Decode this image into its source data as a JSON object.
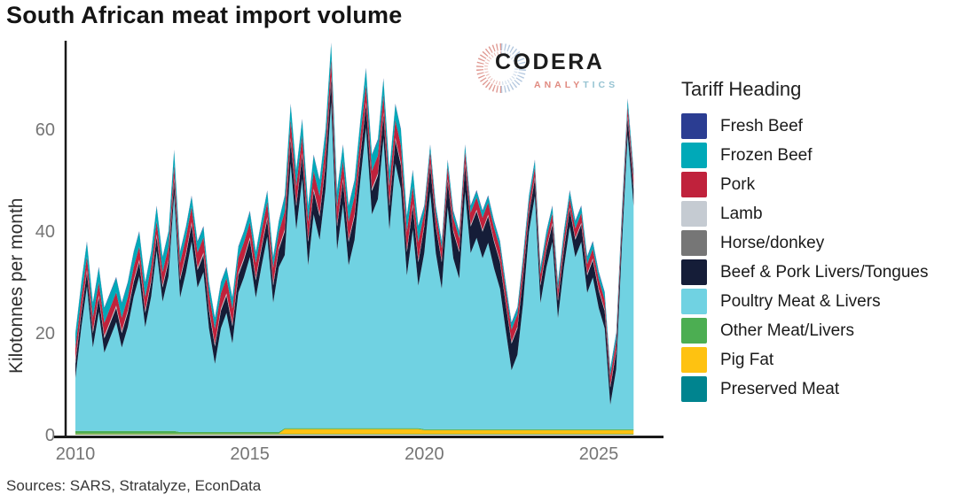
{
  "title": "South African meat import volume",
  "sources": "Sources: SARS, Stratalyze, EconData",
  "logo": {
    "name": "CODERA",
    "subtitle_left": "ANALY",
    "subtitle_right": "TICS"
  },
  "legend": {
    "title": "Tariff Heading",
    "position": "right"
  },
  "chart_data": {
    "type": "area",
    "stacked": true,
    "title": "South African meat import volume",
    "xlabel": "",
    "ylabel": "Kilotonnes per month",
    "grid": false,
    "legend_title": "Tariff Heading",
    "legend_position": "right",
    "xlim": [
      2010,
      2026.2
    ],
    "ylim": [
      0,
      77
    ],
    "x_ticks": [
      2010,
      2015,
      2020,
      2025
    ],
    "y_ticks": [
      0,
      20,
      40,
      60
    ],
    "x_unit": "decimal year, monthly data sampled bimonthly",
    "y_unit": "kilotonnes per month",
    "stack_note": "series listed top-of-stack first (legend order); stacking bottom-to-top is the reverse order",
    "x": [
      2010,
      2010.17,
      2010.33,
      2010.5,
      2010.67,
      2010.83,
      2011,
      2011.17,
      2011.33,
      2011.5,
      2011.67,
      2011.83,
      2012,
      2012.17,
      2012.33,
      2012.5,
      2012.67,
      2012.83,
      2013,
      2013.17,
      2013.33,
      2013.5,
      2013.67,
      2013.83,
      2014,
      2014.17,
      2014.33,
      2014.5,
      2014.67,
      2014.83,
      2015,
      2015.17,
      2015.33,
      2015.5,
      2015.67,
      2015.83,
      2016,
      2016.17,
      2016.33,
      2016.5,
      2016.67,
      2016.83,
      2017,
      2017.17,
      2017.33,
      2017.5,
      2017.67,
      2017.83,
      2018,
      2018.17,
      2018.33,
      2018.5,
      2018.67,
      2018.83,
      2019,
      2019.17,
      2019.33,
      2019.5,
      2019.67,
      2019.83,
      2020,
      2020.17,
      2020.33,
      2020.5,
      2020.67,
      2020.83,
      2021,
      2021.17,
      2021.33,
      2021.5,
      2021.67,
      2021.83,
      2022,
      2022.17,
      2022.33,
      2022.5,
      2022.67,
      2022.83,
      2023,
      2023.17,
      2023.33,
      2023.5,
      2023.67,
      2023.83,
      2024,
      2024.17,
      2024.33,
      2024.5,
      2024.67,
      2024.83,
      2025,
      2025.17,
      2025.33,
      2025.5,
      2025.67,
      2025.83,
      2026
    ],
    "series": [
      {
        "name": "Fresh Beef",
        "color": "#2b3d92",
        "values": [
          0.2,
          0.2,
          0.2,
          0.2,
          0.2,
          0.2,
          0.2,
          0.2,
          0.2,
          0.2,
          0.2,
          0.2,
          0.2,
          0.2,
          0.2,
          0.2,
          0.2,
          0.2,
          0.2,
          0.2,
          0.2,
          0.2,
          0.2,
          0.2,
          0.2,
          0.2,
          0.2,
          0.2,
          0.2,
          0.2,
          0.2,
          0.2,
          0.2,
          0.2,
          0.2,
          0.2,
          0.2,
          0.2,
          0.2,
          0.2,
          0.2,
          0.2,
          0.2,
          0.2,
          0.2,
          0.2,
          0.2,
          0.2,
          0.2,
          0.2,
          0.2,
          0.2,
          0.2,
          0.2,
          0.2,
          0.2,
          0.2,
          0.2,
          0.2,
          0.2,
          0.2,
          0.2,
          0.2,
          0.2,
          0.2,
          0.2,
          0.2,
          0.2,
          0.2,
          0.2,
          0.2,
          0.2,
          0.2,
          0.2,
          0.2,
          0.2,
          0.2,
          0.2,
          0.2,
          0.2,
          0.2,
          0.2,
          0.2,
          0.2,
          0.2,
          0.2,
          0.2,
          0.2,
          0.2,
          0.2,
          0.2,
          0.2,
          0.2,
          0.2,
          0.2,
          0.2,
          0.2
        ]
      },
      {
        "name": "Frozen Beef",
        "color": "#00a9b8",
        "values": [
          2.8,
          2.8,
          2.8,
          2.8,
          2.8,
          2.8,
          2.8,
          2.8,
          2.8,
          2.8,
          2.8,
          2.8,
          2.8,
          2.8,
          2.8,
          2.8,
          2.8,
          2.8,
          2,
          2,
          2,
          2,
          2,
          2,
          2,
          2,
          2,
          2,
          2,
          2,
          2,
          2,
          2,
          2,
          2,
          2,
          3,
          3,
          3,
          3,
          3,
          3,
          3,
          3,
          3,
          3,
          3,
          3,
          3,
          3,
          3,
          3,
          3,
          3,
          3,
          3,
          3,
          3,
          3,
          3,
          1.2,
          1.2,
          1.2,
          1.2,
          1.2,
          1.2,
          1.2,
          1.2,
          1.2,
          1.2,
          1.2,
          1.2,
          1.2,
          1.2,
          1.2,
          1.2,
          1.2,
          1.2,
          1.3,
          1.3,
          1.3,
          1.3,
          1.3,
          1.3,
          1.3,
          1.3,
          1.3,
          1.3,
          1.3,
          1.3,
          1.3,
          1.3,
          1.3,
          1.3,
          1.3,
          1.3,
          1.3
        ]
      },
      {
        "name": "Pork",
        "color": "#c0223c",
        "values": [
          2.6,
          2.6,
          2.6,
          2.6,
          2.6,
          2.6,
          2.6,
          2.6,
          2.6,
          2.6,
          2.6,
          2.6,
          2.6,
          2.6,
          2.6,
          2.6,
          2.6,
          2.6,
          3,
          3,
          3,
          3,
          3,
          3,
          3,
          3,
          3,
          3,
          3,
          3,
          3,
          3,
          3,
          3,
          3,
          3,
          3.5,
          3.5,
          3.5,
          3.5,
          3.5,
          3.5,
          3.5,
          3.5,
          3.5,
          3.5,
          3.5,
          3.5,
          3.5,
          3.5,
          3.5,
          3.5,
          3.5,
          3.5,
          3.5,
          3.5,
          3.5,
          3.5,
          3.5,
          3.5,
          2.4,
          2.4,
          2.4,
          2.4,
          2.4,
          2.4,
          2.4,
          2.4,
          2.4,
          2.4,
          2.4,
          2.4,
          2.4,
          2.4,
          2.4,
          2.4,
          2.4,
          2.4,
          1.9,
          1.9,
          1.9,
          1.9,
          1.9,
          1.9,
          1.9,
          1.9,
          1.9,
          1.9,
          1.9,
          1.9,
          1.9,
          1.9,
          1.9,
          1.9,
          1.9,
          1.9,
          1.9
        ]
      },
      {
        "name": "Lamb",
        "color": "#c5cbd2",
        "values": [
          0.4,
          0.4,
          0.4,
          0.4,
          0.4,
          0.4,
          0.4,
          0.4,
          0.4,
          0.4,
          0.4,
          0.4,
          0.4,
          0.4,
          0.4,
          0.4,
          0.4,
          0.4,
          0.4,
          0.4,
          0.4,
          0.4,
          0.4,
          0.4,
          0.4,
          0.4,
          0.4,
          0.4,
          0.4,
          0.4,
          0.4,
          0.4,
          0.4,
          0.4,
          0.4,
          0.4,
          0.4,
          0.4,
          0.4,
          0.4,
          0.4,
          0.4,
          0.4,
          0.4,
          0.4,
          0.4,
          0.4,
          0.4,
          0.4,
          0.4,
          0.4,
          0.4,
          0.4,
          0.4,
          0.4,
          0.4,
          0.4,
          0.4,
          0.4,
          0.4,
          0.3,
          0.3,
          0.3,
          0.3,
          0.3,
          0.3,
          0.3,
          0.3,
          0.3,
          0.3,
          0.3,
          0.3,
          0.3,
          0.3,
          0.3,
          0.3,
          0.3,
          0.3,
          0.3,
          0.3,
          0.3,
          0.3,
          0.3,
          0.3,
          0.3,
          0.3,
          0.3,
          0.3,
          0.3,
          0.3,
          0.3,
          0.3,
          0.3,
          0.3,
          0.3,
          0.3,
          0.3
        ]
      },
      {
        "name": "Horse/donkey",
        "color": "#767676",
        "values": [
          0.05,
          0.05,
          0.05,
          0.05,
          0.05,
          0.05,
          0.05,
          0.05,
          0.05,
          0.05,
          0.05,
          0.05,
          0.05,
          0.05,
          0.05,
          0.05,
          0.05,
          0.05,
          0.05,
          0.05,
          0.05,
          0.05,
          0.05,
          0.05,
          0.05,
          0.05,
          0.05,
          0.05,
          0.05,
          0.05,
          0.05,
          0.05,
          0.05,
          0.05,
          0.05,
          0.05,
          0.05,
          0.05,
          0.05,
          0.05,
          0.05,
          0.05,
          0.05,
          0.05,
          0.05,
          0.05,
          0.05,
          0.05,
          0.05,
          0.05,
          0.05,
          0.05,
          0.05,
          0.05,
          0.05,
          0.05,
          0.05,
          0.05,
          0.05,
          0.05,
          0.05,
          0.05,
          0.05,
          0.05,
          0.05,
          0.05,
          0.05,
          0.05,
          0.05,
          0.05,
          0.05,
          0.05,
          0.05,
          0.05,
          0.05,
          0.05,
          0.05,
          0.05,
          0.05,
          0.05,
          0.05,
          0.05,
          0.05,
          0.05,
          0.05,
          0.05,
          0.05,
          0.05,
          0.05,
          0.05,
          0.05,
          0.05,
          0.05,
          0.05,
          0.05,
          0.05,
          0.05
        ]
      },
      {
        "name": "Beef & Pork Livers/Tongues",
        "color": "#151d38",
        "values": [
          2.8,
          2.8,
          2.8,
          2.8,
          2.8,
          2.8,
          2.8,
          2.8,
          2.8,
          2.8,
          2.8,
          2.8,
          2.8,
          2.8,
          2.8,
          2.8,
          2.8,
          2.8,
          3.4,
          3.4,
          3.4,
          3.4,
          3.4,
          3.4,
          3.4,
          3.4,
          3.4,
          3.4,
          3.4,
          3.4,
          3.4,
          3.4,
          3.4,
          3.4,
          3.4,
          3.4,
          4.6,
          4.6,
          4.6,
          4.6,
          4.6,
          4.6,
          4.6,
          4.6,
          4.6,
          4.6,
          4.6,
          4.6,
          4.6,
          4.6,
          4.6,
          4.6,
          4.6,
          4.6,
          4.6,
          4.6,
          4.6,
          4.6,
          4.6,
          4.6,
          5.2,
          5.2,
          5.2,
          5.2,
          5.2,
          5.2,
          5.2,
          5.2,
          5.2,
          5.2,
          5.2,
          5.2,
          5.2,
          5.2,
          5.2,
          5.2,
          5.2,
          5.2,
          3.4,
          3.4,
          3.4,
          3.4,
          3.4,
          3.4,
          3.4,
          3.4,
          3.4,
          3.4,
          3.4,
          3.4,
          3.4,
          3.4,
          3.4,
          3.4,
          3.4,
          3.4,
          3.4
        ]
      },
      {
        "name": "Poultry Meat & Livers",
        "color": "#70d2e2",
        "values": [
          10.4,
          20.4,
          28.4,
          16.4,
          23.4,
          15.4,
          18.4,
          21.4,
          16.4,
          20.4,
          26.4,
          30.4,
          20.4,
          26.4,
          35.4,
          25.4,
          30.4,
          46.4,
          26.4,
          31.4,
          37.4,
          28.4,
          31.4,
          20.4,
          13.4,
          20.4,
          23.4,
          17.4,
          27.4,
          30.4,
          34.4,
          26.4,
          32.4,
          38.4,
          25.4,
          32.4,
          34,
          52,
          39,
          49,
          32,
          42,
          37,
          47,
          64,
          35,
          44,
          32,
          37,
          49,
          59,
          42,
          45,
          57,
          39,
          52,
          47,
          30,
          39,
          28,
          34.6,
          46.6,
          34.6,
          27.6,
          43.6,
          33.6,
          29.6,
          46.6,
          34.6,
          37.6,
          33.6,
          36.6,
          31.6,
          27.6,
          19.6,
          11.6,
          14.6,
          24.6,
          38.8,
          45.8,
          24.8,
          31.8,
          36.8,
          21.8,
          31.8,
          39.8,
          33.8,
          36.8,
          26.8,
          29.8,
          23.8,
          19.8,
          4.8,
          11.8,
          36.8,
          57.8,
          43.8
        ]
      },
      {
        "name": "Other Meat/Livers",
        "color": "#4cae52",
        "values": [
          0.5,
          0.5,
          0.5,
          0.5,
          0.5,
          0.5,
          0.5,
          0.5,
          0.5,
          0.5,
          0.5,
          0.5,
          0.5,
          0.5,
          0.5,
          0.5,
          0.5,
          0.5,
          0.3,
          0.3,
          0.3,
          0.3,
          0.3,
          0.3,
          0.3,
          0.3,
          0.3,
          0.3,
          0.3,
          0.3,
          0.3,
          0.3,
          0.3,
          0.3,
          0.3,
          0.3,
          0.2,
          0.2,
          0.2,
          0.2,
          0.2,
          0.2,
          0.2,
          0.2,
          0.2,
          0.2,
          0.2,
          0.2,
          0.2,
          0.2,
          0.2,
          0.2,
          0.2,
          0.2,
          0.2,
          0.2,
          0.2,
          0.2,
          0.2,
          0.2,
          0.2,
          0.2,
          0.2,
          0.2,
          0.2,
          0.2,
          0.2,
          0.2,
          0.2,
          0.2,
          0.2,
          0.2,
          0.2,
          0.2,
          0.2,
          0.2,
          0.2,
          0.2,
          0.2,
          0.2,
          0.2,
          0.2,
          0.2,
          0.2,
          0.2,
          0.2,
          0.2,
          0.2,
          0.2,
          0.2,
          0.2,
          0.2,
          0.2,
          0.2,
          0.2,
          0.2,
          0.2
        ]
      },
      {
        "name": "Pig Fat",
        "color": "#fec211",
        "values": [
          0.15,
          0.15,
          0.15,
          0.15,
          0.15,
          0.15,
          0.15,
          0.15,
          0.15,
          0.15,
          0.15,
          0.15,
          0.15,
          0.15,
          0.15,
          0.15,
          0.15,
          0.15,
          0.15,
          0.15,
          0.15,
          0.15,
          0.15,
          0.15,
          0.15,
          0.15,
          0.15,
          0.15,
          0.15,
          0.15,
          0.15,
          0.15,
          0.15,
          0.15,
          0.15,
          0.15,
          1,
          1,
          1,
          1,
          1,
          1,
          1,
          1,
          1,
          1,
          1,
          1,
          1,
          1,
          1,
          1,
          1,
          1,
          1,
          1,
          1,
          1,
          1,
          1,
          0.8,
          0.8,
          0.8,
          0.8,
          0.8,
          0.8,
          0.8,
          0.8,
          0.8,
          0.8,
          0.8,
          0.8,
          0.8,
          0.8,
          0.8,
          0.8,
          0.8,
          0.8,
          0.8,
          0.8,
          0.8,
          0.8,
          0.8,
          0.8,
          0.8,
          0.8,
          0.8,
          0.8,
          0.8,
          0.8,
          0.8,
          0.8,
          0.8,
          0.8,
          0.8,
          0.8,
          0.8
        ]
      },
      {
        "name": "Preserved Meat",
        "color": "#00848f",
        "values": [
          0.08,
          0.08,
          0.08,
          0.08,
          0.08,
          0.08,
          0.08,
          0.08,
          0.08,
          0.08,
          0.08,
          0.08,
          0.08,
          0.08,
          0.08,
          0.08,
          0.08,
          0.08,
          0.08,
          0.08,
          0.08,
          0.08,
          0.08,
          0.08,
          0.08,
          0.08,
          0.08,
          0.08,
          0.08,
          0.08,
          0.08,
          0.08,
          0.08,
          0.08,
          0.08,
          0.08,
          0.08,
          0.08,
          0.08,
          0.08,
          0.08,
          0.08,
          0.08,
          0.08,
          0.08,
          0.08,
          0.08,
          0.08,
          0.08,
          0.08,
          0.08,
          0.08,
          0.08,
          0.08,
          0.08,
          0.08,
          0.08,
          0.08,
          0.08,
          0.08,
          0.08,
          0.08,
          0.08,
          0.08,
          0.08,
          0.08,
          0.08,
          0.08,
          0.08,
          0.08,
          0.08,
          0.08,
          0.08,
          0.08,
          0.08,
          0.08,
          0.08,
          0.08,
          0.08,
          0.08,
          0.08,
          0.08,
          0.08,
          0.08,
          0.08,
          0.08,
          0.08,
          0.08,
          0.08,
          0.08,
          0.08,
          0.08,
          0.08,
          0.08,
          0.08,
          0.08,
          0.08
        ]
      }
    ]
  }
}
